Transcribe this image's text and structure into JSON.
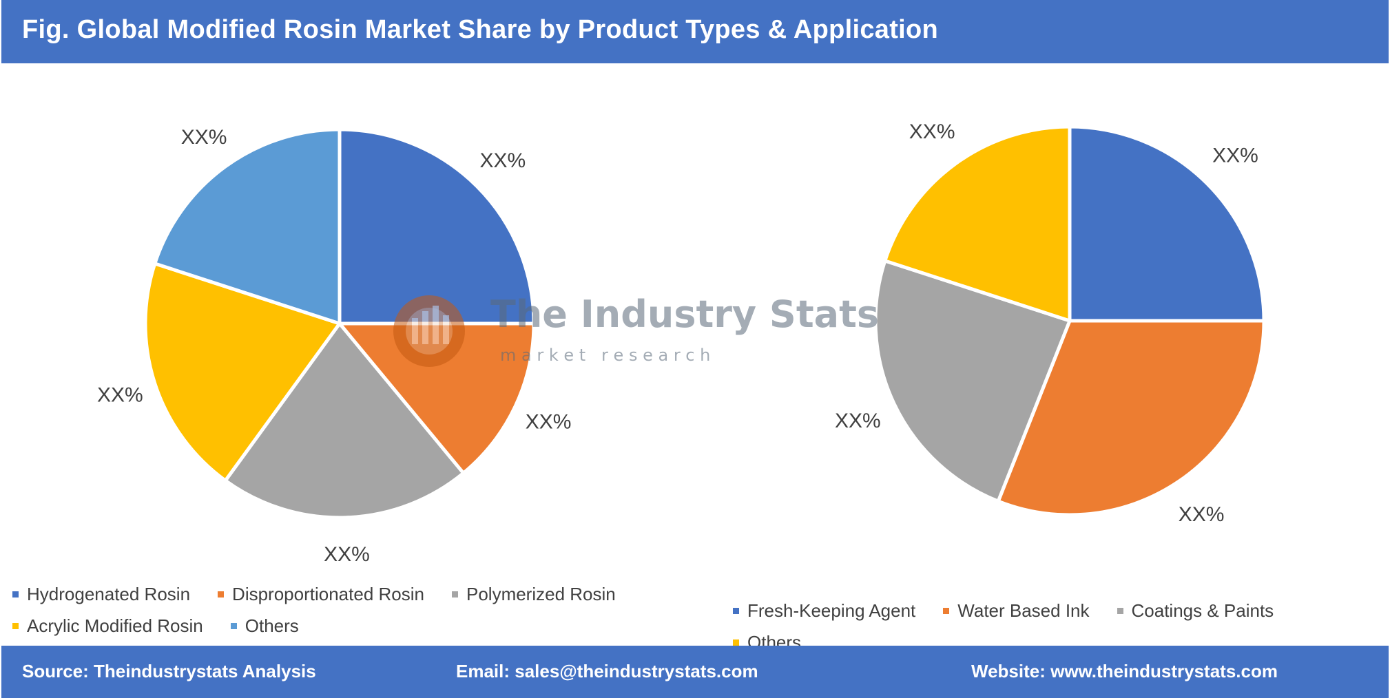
{
  "header": {
    "title": "Fig. Global Modified Rosin Market Share by Product Types & Application"
  },
  "watermark": {
    "name": "The Industry Stats",
    "tagline": "m a r k e t   r e s e a r c h"
  },
  "chart_data": [
    {
      "type": "pie",
      "title": "",
      "slices": [
        {
          "name": "Hydrogenated Rosin",
          "value": 25,
          "label": "XX%",
          "color": "#4472c4"
        },
        {
          "name": "Disproportionated Rosin",
          "value": 14,
          "label": "XX%",
          "color": "#ed7d31"
        },
        {
          "name": "Polymerized Rosin",
          "value": 21,
          "label": "XX%",
          "color": "#a5a5a5"
        },
        {
          "name": "Acrylic Modified Rosin",
          "value": 20,
          "label": "XX%",
          "color": "#ffc000"
        },
        {
          "name": "Others",
          "value": 20,
          "label": "XX%",
          "color": "#5b9bd5"
        }
      ],
      "legend": "bottom"
    },
    {
      "type": "pie",
      "title": "",
      "slices": [
        {
          "name": "Fresh-Keeping Agent",
          "value": 25,
          "label": "XX%",
          "color": "#4472c4"
        },
        {
          "name": "Water Based Ink",
          "value": 31,
          "label": "XX%",
          "color": "#ed7d31"
        },
        {
          "name": "Coatings & Paints",
          "value": 24,
          "label": "XX%",
          "color": "#a5a5a5"
        },
        {
          "name": "Others",
          "value": 20,
          "label": "XX%",
          "color": "#ffc000"
        }
      ],
      "legend": "bottom"
    }
  ],
  "footer": {
    "source": "Source: Theindustrystats Analysis",
    "email": "Email: sales@theindustrystats.com",
    "website": "Website: www.theindustrystats.com"
  }
}
